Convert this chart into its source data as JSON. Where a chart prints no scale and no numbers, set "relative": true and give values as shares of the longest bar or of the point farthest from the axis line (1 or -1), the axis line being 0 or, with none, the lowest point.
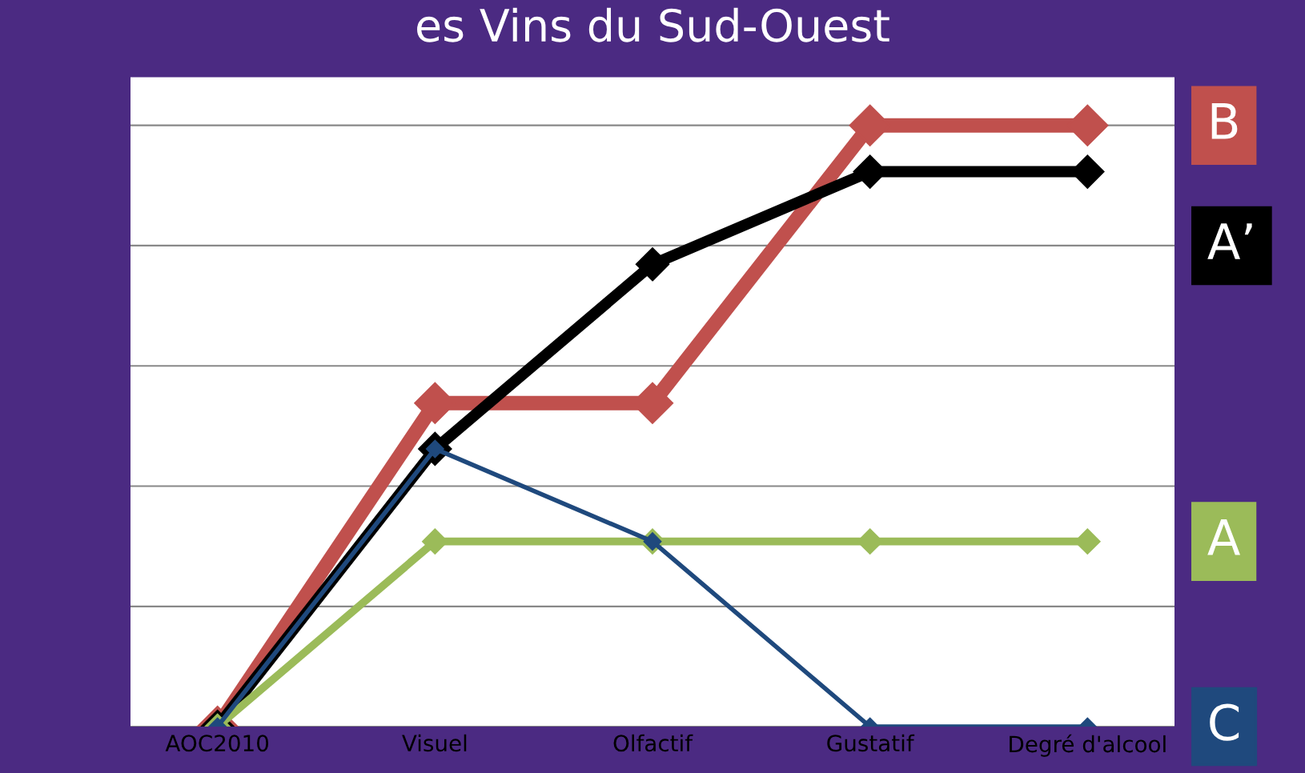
{
  "chart_data": {
    "type": "line",
    "title": "es Vins du Sud-Ouest",
    "relative": true,
    "grid": "y",
    "marker": "diamond",
    "line_style": "solid",
    "legend": "right",
    "categories": [
      "AOC2010",
      "Visuel",
      "Olfactif",
      "Gustatif",
      "Degré d'alcool"
    ],
    "series": [
      {
        "name": "B",
        "color": "#c0504d",
        "values": [
          0,
          0.538,
          0.538,
          1,
          1
        ]
      },
      {
        "name": "A’",
        "color": "#000000",
        "values": [
          0,
          0.462,
          0.769,
          0.923,
          0.923
        ]
      },
      {
        "name": "A",
        "color": "#9bbb59",
        "values": [
          0,
          0.308,
          0.308,
          0.308,
          0.308
        ]
      },
      {
        "name": "C",
        "color": "#1f497d",
        "values": [
          0,
          0.462,
          0.308,
          0,
          0
        ]
      }
    ]
  }
}
